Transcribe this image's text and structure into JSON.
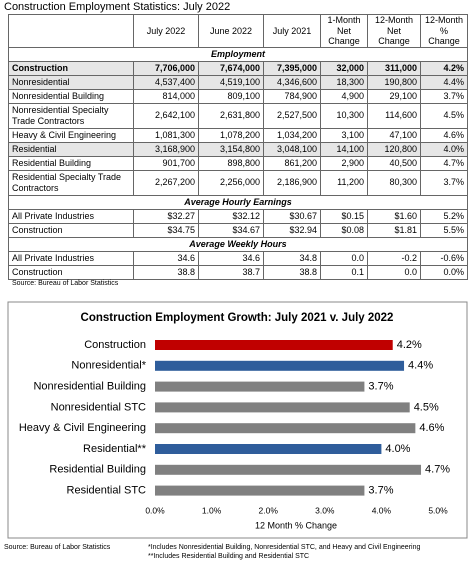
{
  "table": {
    "title": "Construction Employment Statistics: July 2022",
    "columns": [
      "July 2022",
      "June 2022",
      "July 2021",
      "1-Month Net Change",
      "12-Month Net Change",
      "12-Month % Change"
    ],
    "sections": [
      {
        "title": "Employment",
        "rows": [
          [
            "Construction",
            "7,706,000",
            "7,674,000",
            "7,395,000",
            "32,000",
            "311,000",
            "4.2%"
          ],
          [
            "Nonresidential",
            "4,537,400",
            "4,519,100",
            "4,346,600",
            "18,300",
            "190,800",
            "4.4%"
          ],
          [
            "Nonresidential Building",
            "814,000",
            "809,100",
            "784,900",
            "4,900",
            "29,100",
            "3.7%"
          ],
          [
            "Nonresidential Specialty Trade Contractors",
            "2,642,100",
            "2,631,800",
            "2,527,500",
            "10,300",
            "114,600",
            "4.5%"
          ],
          [
            "Heavy & Civil Engineering",
            "1,081,300",
            "1,078,200",
            "1,034,200",
            "3,100",
            "47,100",
            "4.6%"
          ],
          [
            "Residential",
            "3,168,900",
            "3,154,800",
            "3,048,100",
            "14,100",
            "120,800",
            "4.0%"
          ],
          [
            "Residential Building",
            "901,700",
            "898,800",
            "861,200",
            "2,900",
            "40,500",
            "4.7%"
          ],
          [
            "Residential Specialty Trade Contractors",
            "2,267,200",
            "2,256,000",
            "2,186,900",
            "11,200",
            "80,300",
            "3.7%"
          ]
        ]
      },
      {
        "title": "Average Hourly Earnings",
        "rows": [
          [
            "All Private Industries",
            "$32.27",
            "$32.12",
            "$30.67",
            "$0.15",
            "$1.60",
            "5.2%"
          ],
          [
            "Construction",
            "$34.75",
            "$34.67",
            "$32.94",
            "$0.08",
            "$1.81",
            "5.5%"
          ]
        ]
      },
      {
        "title": "Average Weekly Hours",
        "rows": [
          [
            "All Private Industries",
            "34.6",
            "34.6",
            "34.8",
            "0.0",
            "-0.2",
            "-0.6%"
          ],
          [
            "Construction",
            "38.8",
            "38.7",
            "38.8",
            "0.1",
            "0.0",
            "0.0%"
          ]
        ]
      }
    ],
    "source": "Source: Bureau of Labor Statistics"
  },
  "chart_data": {
    "type": "hbar",
    "title": "Construction Employment Growth: July 2021 v. July 2022",
    "categories": [
      "Construction",
      "Nonresidential*",
      "Nonresidential Building",
      "Nonresidential STC",
      "Heavy & Civil Engineering",
      "Residential**",
      "Residential Building",
      "Residential STC"
    ],
    "values": [
      4.2,
      4.4,
      3.7,
      4.5,
      4.6,
      4.0,
      4.7,
      3.7
    ],
    "value_labels": [
      "4.2%",
      "4.4%",
      "3.7%",
      "4.5%",
      "4.6%",
      "4.0%",
      "4.7%",
      "3.7%"
    ],
    "colors": [
      "#c00000",
      "#2f5d9b",
      "#808080",
      "#808080",
      "#808080",
      "#2f5d9b",
      "#808080",
      "#808080"
    ],
    "xlim": [
      0,
      5
    ],
    "xticks": [
      {
        "value": 0,
        "label": "0.0%"
      },
      {
        "value": 1,
        "label": "1.0%"
      },
      {
        "value": 2,
        "label": "2.0%"
      },
      {
        "value": 3,
        "label": "3.0%"
      },
      {
        "value": 4,
        "label": "4.0%"
      },
      {
        "value": 5,
        "label": "5.0%"
      }
    ],
    "xlabel": "12 Month % Change",
    "source": "Source:  Bureau of Labor Statistics",
    "footnotes": [
      "*Includes Nonresidential Building, Nonresidential STC, and Heavy and Civil Engineering",
      "**Includes Residential Building and Residential STC"
    ]
  }
}
